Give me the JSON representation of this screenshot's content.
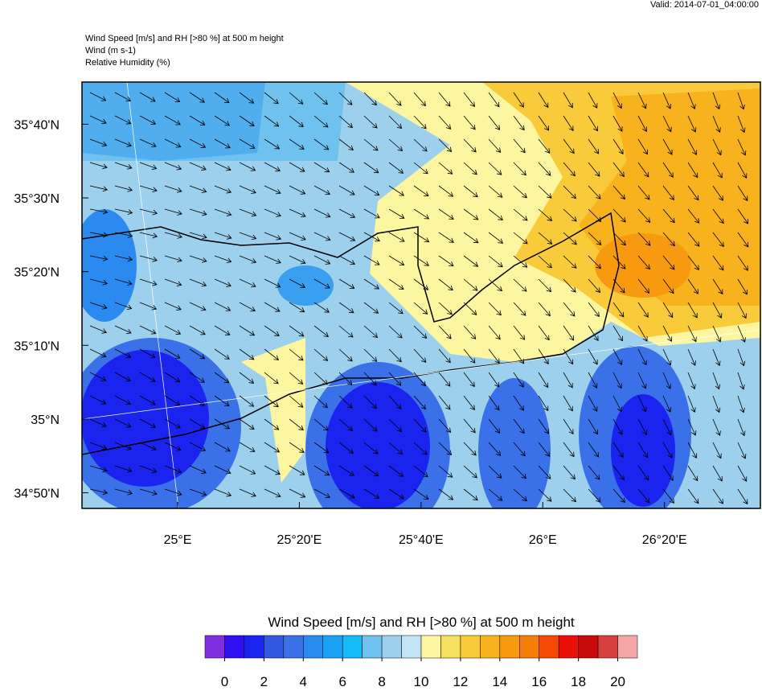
{
  "header": {
    "valid": "Valid: 2014-07-01_04:00:00"
  },
  "titles": [
    "Wind Speed [m/s] and RH [>80 %] at 500 m height",
    "Wind   (m s-1)",
    "Relative Humidity   (%)"
  ],
  "map": {
    "xlim": [
      24.738,
      26.596
    ],
    "ylim": [
      34.798,
      35.762
    ],
    "xticks": [
      {
        "value": 25,
        "label": "25°E"
      },
      {
        "value": 25.3333,
        "label": "25°20'E"
      },
      {
        "value": 25.6667,
        "label": "25°40'E"
      },
      {
        "value": 26,
        "label": "26°E"
      },
      {
        "value": 26.3333,
        "label": "26°20'E"
      }
    ],
    "yticks": [
      {
        "value": 35.6667,
        "label": "35°40'N"
      },
      {
        "value": 35.5,
        "label": "35°30'N"
      },
      {
        "value": 35.3333,
        "label": "35°20'N"
      },
      {
        "value": 35.1667,
        "label": "35°10'N"
      },
      {
        "value": 35,
        "label": "35°N"
      },
      {
        "value": 34.8333,
        "label": "34°50'N"
      }
    ]
  },
  "colorbar": {
    "title": "Wind Speed [m/s] and RH [>80 %] at 500 m height",
    "lim": [
      -1,
      21
    ],
    "ticks": [
      0,
      2,
      4,
      6,
      8,
      10,
      12,
      14,
      16,
      18,
      20
    ],
    "colors": [
      "#7f2ee2",
      "#3010f0",
      "#1a24ee",
      "#3358e0",
      "#3a70e8",
      "#2a8af0",
      "#1aa3f5",
      "#14bbf5",
      "#70c2ee",
      "#9dd0ec",
      "#c3e4f4",
      "#fdf6a0",
      "#f6e060",
      "#f9cb3a",
      "#f8b21e",
      "#f89a10",
      "#f57d08",
      "#f54a06",
      "#e81008",
      "#c80a0a",
      "#d84040",
      "#f4a6a6"
    ]
  }
}
